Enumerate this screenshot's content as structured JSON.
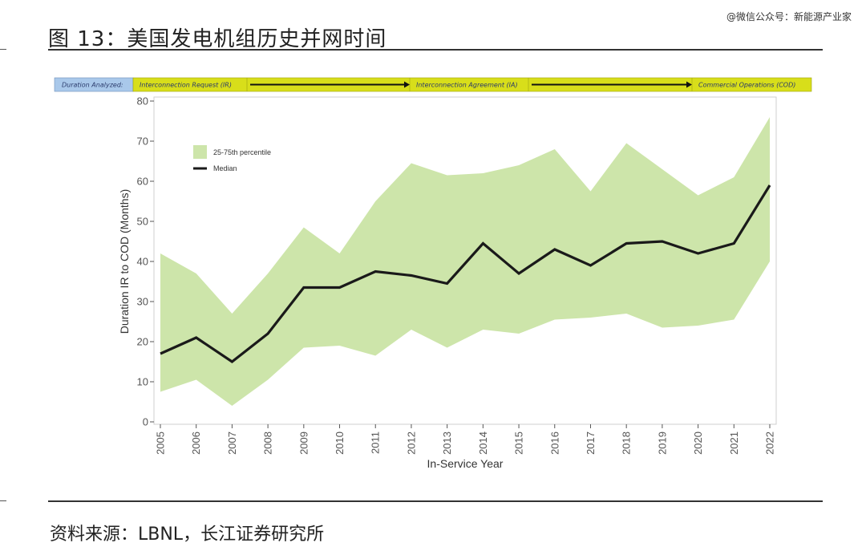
{
  "watermark": "@微信公众号：新能源产业家",
  "figure_title": "图 13：美国发电机组历史并网时间",
  "source": "资料来源：LBNL，长江证券研究所",
  "process_bar": {
    "label": "Duration Analyzed:",
    "steps": [
      "Interconnection Request (IR)",
      "Interconnection Agreement (IA)",
      "Commercial Operations (COD)"
    ],
    "label_color": "#a9c8ea",
    "step_color": "#d8de1a"
  },
  "chart_data": {
    "type": "area",
    "xlabel": "In-Service Year",
    "ylabel": "Duration IR to COD (Months)",
    "ylim": [
      0,
      80
    ],
    "yticks": [
      0,
      10,
      20,
      30,
      40,
      50,
      60,
      70,
      80
    ],
    "x": [
      "2005",
      "2006",
      "2007",
      "2008",
      "2009",
      "2010",
      "2011",
      "2012",
      "2013",
      "2014",
      "2015",
      "2016",
      "2017",
      "2018",
      "2019",
      "2020",
      "2021",
      "2022"
    ],
    "series": [
      {
        "name": "25-75th percentile",
        "kind": "band",
        "color": "#cde5aa",
        "lower": [
          7.5,
          10.5,
          4,
          10.5,
          18.5,
          19,
          16.5,
          23,
          18.5,
          23,
          22,
          25.5,
          26,
          27,
          23.5,
          24,
          25.5,
          40
        ],
        "upper": [
          42,
          37,
          27,
          37,
          48.5,
          42,
          55,
          64.5,
          61.5,
          62,
          64,
          68,
          57.5,
          69.5,
          63,
          56.5,
          61,
          76
        ]
      },
      {
        "name": "Median",
        "kind": "line",
        "color": "#1a1a1a",
        "values": [
          17,
          21,
          15,
          22,
          33.5,
          33.5,
          37.5,
          36.5,
          34.5,
          44.5,
          37,
          43,
          39,
          44.5,
          45,
          42,
          44.5,
          59
        ]
      }
    ],
    "legend_position": "top-left",
    "grid": false
  }
}
